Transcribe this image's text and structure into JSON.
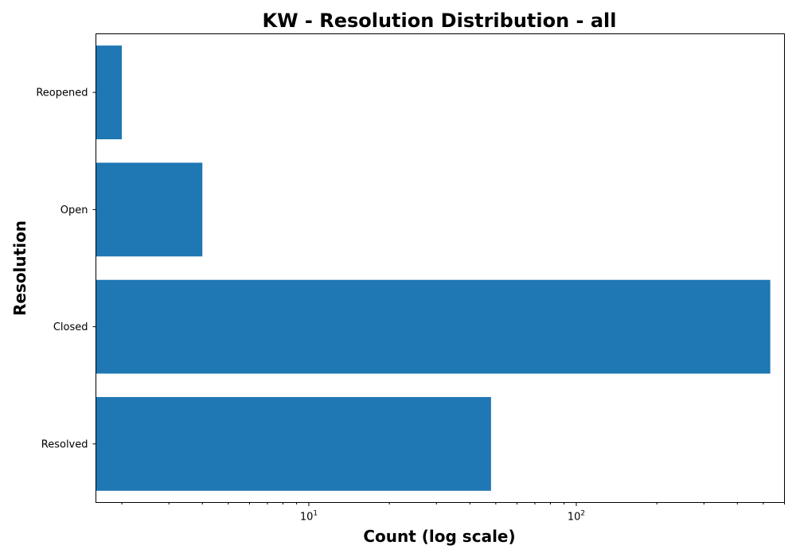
{
  "chart_data": {
    "type": "bar",
    "orientation": "horizontal",
    "title": "KW - Resolution Distribution - all",
    "xlabel": "Count (log scale)",
    "ylabel": "Resolution",
    "x_scale": "log",
    "xlim": [
      1.6,
      600
    ],
    "x_ticks": [
      {
        "value": 10,
        "base": "10",
        "exp": "1"
      },
      {
        "value": 100,
        "base": "10",
        "exp": "2"
      }
    ],
    "categories": [
      "Reopened",
      "Open",
      "Closed",
      "Resolved"
    ],
    "values": [
      2,
      4,
      531,
      48
    ],
    "bar_color": "#1f77b4",
    "grid": false,
    "legend": "none"
  }
}
